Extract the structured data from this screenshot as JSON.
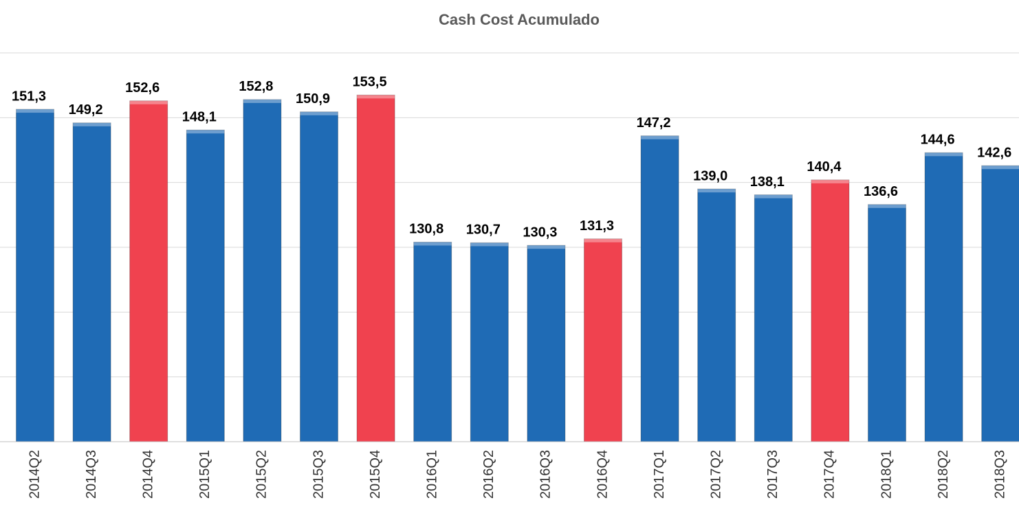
{
  "chart_data": {
    "type": "bar",
    "title": "Cash Cost Acumulado",
    "categories": [
      "2014Q2",
      "2014Q3",
      "2014Q4",
      "2015Q1",
      "2015Q2",
      "2015Q3",
      "2015Q4",
      "2016Q1",
      "2016Q2",
      "2016Q3",
      "2016Q4",
      "2017Q1",
      "2017Q2",
      "2017Q3",
      "2017Q4",
      "2018Q1",
      "2018Q2",
      "2018Q3"
    ],
    "values": [
      151.3,
      149.2,
      152.6,
      148.1,
      152.8,
      150.9,
      153.5,
      130.8,
      130.7,
      130.3,
      131.3,
      147.2,
      139.0,
      138.1,
      140.4,
      136.6,
      144.6,
      142.6
    ],
    "value_labels": [
      "151,3",
      "149,2",
      "152,6",
      "148,1",
      "152,8",
      "150,9",
      "153,5",
      "130,8",
      "130,7",
      "130,3",
      "131,3",
      "147,2",
      "139,0",
      "138,1",
      "140,4",
      "136,6",
      "144,6",
      "142,6"
    ],
    "colors": [
      "#1f6bb5",
      "#1f6bb5",
      "#f0424f",
      "#1f6bb5",
      "#1f6bb5",
      "#1f6bb5",
      "#f0424f",
      "#1f6bb5",
      "#1f6bb5",
      "#1f6bb5",
      "#f0424f",
      "#1f6bb5",
      "#1f6bb5",
      "#1f6bb5",
      "#f0424f",
      "#1f6bb5",
      "#1f6bb5",
      "#1f6bb5"
    ],
    "ylim": [
      100,
      160
    ],
    "yticks": [
      100,
      110,
      120,
      130,
      140,
      150,
      160
    ],
    "grid": true
  }
}
